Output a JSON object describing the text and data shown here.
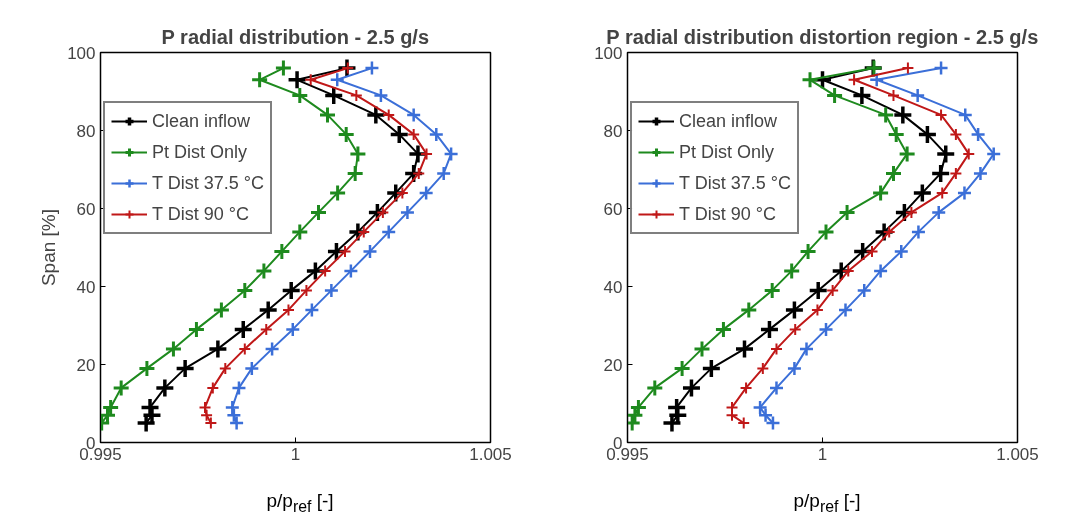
{
  "chart_data": [
    {
      "type": "line",
      "title": "P radial distribution - 2.5 g/s",
      "xlabel": "p/p$_{ref}$ [-]",
      "ylabel": "Span [%]",
      "xlim": [
        0.995,
        1.005
      ],
      "ylim": [
        0,
        100
      ],
      "xticks": [
        0.995,
        1,
        1.005
      ],
      "yticks": [
        0,
        20,
        40,
        60,
        80,
        100
      ],
      "grid": false,
      "legend": "top left",
      "marker": "cross",
      "line_style": "solid",
      "series": [
        {
          "name": "Clean inflow",
          "color": "#000000",
          "x": [
            0.99617,
            0.99632,
            0.99627,
            0.99665,
            0.99717,
            0.99801,
            0.99866,
            0.9993,
            0.99989,
            1.00051,
            1.00105,
            1.0016,
            1.0021,
            1.00257,
            1.00303,
            1.00314,
            1.00266,
            1.00206,
            1.00098,
            1.00004,
            1.00132
          ],
          "values": [
            5,
            7,
            9,
            14,
            19,
            24,
            29,
            34,
            39,
            44,
            49,
            54,
            59,
            64,
            69,
            74,
            79,
            84,
            89,
            93,
            96
          ]
        },
        {
          "name": "Pt Dist Only",
          "color": "#1e8a1e",
          "x": [
            0.99503,
            0.99518,
            0.99526,
            0.99553,
            0.99619,
            0.99687,
            0.99746,
            0.9981,
            0.9987,
            0.99919,
            0.99965,
            1.00011,
            1.00059,
            1.00108,
            1.00153,
            1.0016,
            1.0013,
            1.00082,
            1.00011,
            0.99908,
            0.99969
          ],
          "values": [
            5,
            7,
            9,
            14,
            19,
            24,
            29,
            34,
            39,
            44,
            49,
            54,
            59,
            64,
            69,
            74,
            79,
            84,
            89,
            93,
            96
          ]
        },
        {
          "name": "T Dist 37.5 °C",
          "color": "#3b6fd8",
          "x": [
            0.99849,
            0.99842,
            0.99838,
            0.99855,
            0.99888,
            0.9994,
            0.99993,
            1.00042,
            1.00092,
            1.00142,
            1.00191,
            1.00239,
            1.00287,
            1.00335,
            1.0038,
            1.00399,
            1.00361,
            1.00303,
            1.00219,
            1.00107,
            1.00196
          ],
          "values": [
            5,
            7,
            9,
            14,
            19,
            24,
            29,
            34,
            39,
            44,
            49,
            54,
            59,
            64,
            69,
            74,
            79,
            84,
            89,
            93,
            96
          ]
        },
        {
          "name": "T Dist 90 °C",
          "color": "#c01818",
          "x": [
            0.99783,
            0.99772,
            0.99768,
            0.99788,
            0.9982,
            0.9987,
            0.99925,
            0.99982,
            1.00028,
            1.00076,
            1.00127,
            1.00175,
            1.00224,
            1.00274,
            1.00316,
            1.00336,
            1.00303,
            1.00239,
            1.00156,
            1.00039,
            1.00134
          ],
          "values": [
            5,
            7,
            9,
            14,
            19,
            24,
            29,
            34,
            39,
            44,
            49,
            54,
            59,
            64,
            69,
            74,
            79,
            84,
            89,
            93,
            96
          ]
        }
      ]
    },
    {
      "type": "line",
      "title": "P radial distribution distortion region - 2.5 g/s",
      "xlabel": "p/p$_{ref}$ [-]",
      "xlim": [
        0.995,
        1.005
      ],
      "ylim": [
        0,
        100
      ],
      "xticks": [
        0.995,
        1,
        1.005
      ],
      "yticks": [
        0,
        20,
        40,
        60,
        80,
        100
      ],
      "grid": false,
      "legend": "top left",
      "marker": "cross",
      "line_style": "solid",
      "series": [
        {
          "name": "Clean inflow",
          "color": "#000000",
          "x": [
            0.99614,
            0.99629,
            0.99626,
            0.99664,
            0.99715,
            0.998,
            0.99864,
            0.99928,
            0.99989,
            1.00048,
            1.00103,
            1.00158,
            1.0021,
            1.00256,
            1.00303,
            1.00316,
            1.00269,
            1.00206,
            1.00101,
            1.0,
            1.0013
          ],
          "values": [
            5,
            7,
            9,
            14,
            19,
            24,
            29,
            34,
            39,
            44,
            49,
            54,
            59,
            64,
            69,
            74,
            79,
            84,
            89,
            93,
            96
          ]
        },
        {
          "name": "Pt Dist Only",
          "color": "#1e8a1e",
          "x": [
            0.99512,
            0.99519,
            0.99528,
            0.9957,
            0.9964,
            0.99691,
            0.99746,
            0.99811,
            0.99871,
            0.99921,
            0.99963,
            1.00009,
            1.00063,
            1.00149,
            1.00182,
            1.00217,
            1.00189,
            1.00162,
            1.00031,
            0.99968,
            1.00132
          ],
          "values": [
            5,
            7,
            9,
            14,
            19,
            24,
            29,
            34,
            39,
            44,
            49,
            54,
            59,
            64,
            69,
            74,
            79,
            84,
            89,
            93,
            96
          ]
        },
        {
          "name": "T Dist 37.5 °C",
          "color": "#3b6fd8",
          "x": [
            0.99873,
            0.99854,
            0.9984,
            0.99882,
            0.99928,
            0.99959,
            1.00009,
            1.00059,
            1.00107,
            1.00149,
            1.00202,
            1.00246,
            1.00298,
            1.00364,
            1.00405,
            1.00439,
            1.00399,
            1.00366,
            1.00244,
            1.00139,
            1.00304
          ],
          "values": [
            5,
            7,
            9,
            14,
            19,
            24,
            29,
            34,
            39,
            44,
            49,
            54,
            59,
            64,
            69,
            74,
            79,
            84,
            89,
            93,
            96
          ]
        },
        {
          "name": "T Dist 90 °C",
          "color": "#c01818",
          "x": [
            0.99798,
            0.99768,
            0.99768,
            0.99804,
            0.99847,
            0.99882,
            0.9993,
            0.99987,
            1.00026,
            1.00066,
            1.00127,
            1.00171,
            1.00228,
            1.00307,
            1.00342,
            1.00375,
            1.00342,
            1.00304,
            1.00182,
            1.00081,
            1.00219
          ],
          "values": [
            5,
            7,
            9,
            14,
            19,
            24,
            29,
            34,
            39,
            44,
            49,
            54,
            59,
            64,
            69,
            74,
            79,
            84,
            89,
            93,
            96
          ]
        }
      ]
    }
  ]
}
